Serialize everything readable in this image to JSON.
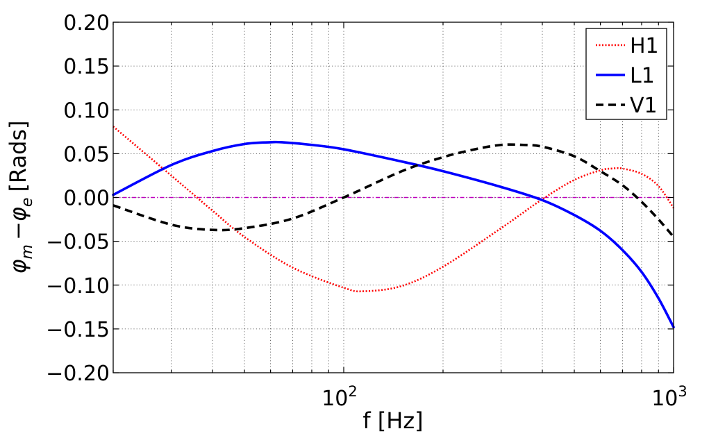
{
  "chart_data": {
    "type": "line",
    "xscale": "log",
    "xlim": [
      20,
      1000
    ],
    "ylim": [
      -0.2,
      0.2
    ],
    "xlabel": "f [Hz]",
    "ylabel_base": "[Rads]",
    "ylabel_math": [
      "φ",
      "m",
      "−φ",
      "e"
    ],
    "x_ticks": [
      {
        "value": 100,
        "base": "10",
        "exp": "2"
      },
      {
        "value": 1000,
        "base": "10",
        "exp": "3"
      }
    ],
    "y_ticks": [
      "0.20",
      "0.15",
      "0.10",
      "0.05",
      "0.00",
      "−0.05",
      "−0.10",
      "−0.15",
      "−0.20"
    ],
    "y_tick_values": [
      0.2,
      0.15,
      0.1,
      0.05,
      0.0,
      -0.05,
      -0.1,
      -0.15,
      -0.2
    ],
    "grid": true,
    "legend_position": "top-right",
    "reference_line": {
      "y": 0.0,
      "color": "#bf00bf",
      "style": "dashdot"
    },
    "series": [
      {
        "name": "H1",
        "color": "#ff0000",
        "style": "dotted",
        "x": [
          20,
          30,
          40,
          50,
          70,
          100,
          115,
          150,
          200,
          300,
          400,
          500,
          600,
          650,
          700,
          800,
          900,
          1000
        ],
        "y": [
          0.081,
          0.025,
          -0.015,
          -0.045,
          -0.08,
          -0.103,
          -0.107,
          -0.101,
          -0.079,
          -0.035,
          -0.002,
          0.02,
          0.031,
          0.033,
          0.033,
          0.027,
          0.013,
          -0.012
        ]
      },
      {
        "name": "L1",
        "color": "#0000ff",
        "style": "solid",
        "x": [
          20,
          30,
          40,
          50,
          60,
          65,
          80,
          100,
          150,
          200,
          300,
          400,
          500,
          600,
          700,
          800,
          900,
          1000
        ],
        "y": [
          0.003,
          0.037,
          0.053,
          0.061,
          0.063,
          0.063,
          0.06,
          0.055,
          0.041,
          0.03,
          0.012,
          -0.003,
          -0.02,
          -0.038,
          -0.06,
          -0.085,
          -0.115,
          -0.148
        ]
      },
      {
        "name": "V1",
        "color": "#000000",
        "style": "dashed",
        "x": [
          20,
          30,
          40,
          50,
          70,
          100,
          150,
          200,
          250,
          300,
          350,
          400,
          500,
          600,
          700,
          800,
          900,
          1000
        ],
        "y": [
          -0.009,
          -0.031,
          -0.037,
          -0.035,
          -0.024,
          0.0,
          0.03,
          0.046,
          0.055,
          0.06,
          0.06,
          0.058,
          0.047,
          0.03,
          0.014,
          -0.005,
          -0.025,
          -0.045
        ]
      }
    ]
  }
}
